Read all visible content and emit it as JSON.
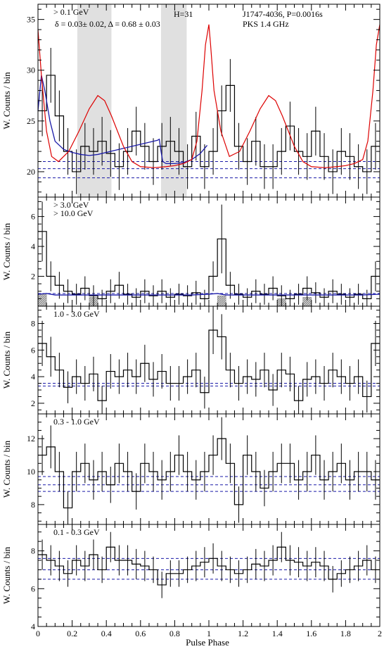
{
  "figure": {
    "xlabel": "Pulse Phase",
    "xlim": [
      0,
      2
    ],
    "x_ticks": [
      "0",
      "0.2",
      "0.4",
      "0.6",
      "0.8",
      "1",
      "1.2",
      "1.4",
      "1.6",
      "1.8",
      "2"
    ],
    "colors": {
      "histogram": "#000000",
      "radio": "#dd0000",
      "fit": "#1a1aa8",
      "background": "#1a1aa8",
      "shading": "#e0e0e0",
      "hatch": "#888888"
    }
  },
  "chart_data": [
    {
      "type": "histogram",
      "panel": "0.1 GeV and above",
      "ylabel": "W. Counts / bin",
      "ylim": [
        17.5,
        36.5
      ],
      "y_ticks": [
        20,
        25,
        30,
        35
      ],
      "labels": {
        "energy": "> 0.1 GeV",
        "htest": "H=31",
        "pulsar": "J1747-4036, P=0.0016s",
        "radio_source": "PKS 1.4 GHz",
        "fit": "δ = 0.03± 0.02, Δ = 0.68 ± 0.03"
      },
      "shaded_ranges": [
        [
          0.23,
          0.43
        ],
        [
          0.72,
          0.87
        ]
      ],
      "bins": 40,
      "values": [
        26.0,
        29.5,
        25.5,
        22.0,
        20.0,
        22.5,
        22.0,
        23.0,
        21.8,
        20.5,
        22.0,
        24.0,
        22.5,
        21.0,
        22.5,
        23.0,
        22.0,
        20.5,
        23.5,
        20.5,
        22.0,
        26.0,
        28.5,
        22.5,
        21.0,
        23.0,
        20.5,
        20.5,
        22.0,
        24.5,
        22.0,
        21.5,
        24.0,
        21.5,
        20.0,
        22.0,
        21.5,
        20.5,
        20.0,
        22.5
      ],
      "errors": [
        2.5,
        2.7,
        2.5,
        2.3,
        2.2,
        2.3,
        2.3,
        2.4,
        2.3,
        2.3,
        2.3,
        2.4,
        2.3,
        2.3,
        2.3,
        2.4,
        2.3,
        2.2,
        2.4,
        2.2,
        2.3,
        2.5,
        2.6,
        2.3,
        2.3,
        2.4,
        2.2,
        2.2,
        2.3,
        2.4,
        2.3,
        2.3,
        2.4,
        2.3,
        2.2,
        2.3,
        2.3,
        2.2,
        2.2,
        2.3
      ],
      "background_lines": [
        21.0,
        20.3,
        19.4
      ],
      "fit_curve": {
        "x": [
          0.0,
          0.02,
          0.04,
          0.07,
          0.1,
          0.15,
          0.2,
          0.25,
          0.3,
          0.35,
          0.4,
          0.45,
          0.5,
          0.55,
          0.6,
          0.65,
          0.7,
          0.71,
          0.72,
          0.73,
          0.75,
          0.8,
          0.85,
          0.9,
          0.95,
          0.99
        ],
        "y": [
          26.0,
          29.5,
          28.0,
          25.0,
          23.0,
          22.2,
          21.9,
          21.7,
          21.6,
          21.7,
          21.9,
          22.1,
          22.3,
          22.5,
          22.7,
          22.9,
          23.1,
          23.2,
          22.0,
          21.0,
          20.8,
          20.8,
          20.9,
          21.2,
          21.8,
          22.6
        ]
      },
      "radio_profile": {
        "x": [
          0.0,
          0.02,
          0.05,
          0.08,
          0.12,
          0.18,
          0.24,
          0.3,
          0.35,
          0.39,
          0.43,
          0.5,
          0.55,
          0.6,
          0.68,
          0.75,
          0.8,
          0.85,
          0.9,
          0.93,
          0.96,
          0.98,
          1.0,
          1.01,
          1.03,
          1.07,
          1.12,
          1.18,
          1.24,
          1.3,
          1.35,
          1.39,
          1.43,
          1.5,
          1.55,
          1.6,
          1.68,
          1.75,
          1.8,
          1.85,
          1.9,
          1.93,
          1.96,
          1.98,
          2.0
        ],
        "y": [
          34.0,
          29.5,
          24.0,
          21.5,
          21.0,
          22.0,
          24.0,
          26.2,
          27.5,
          27.0,
          25.5,
          22.5,
          21.0,
          20.5,
          20.4,
          20.5,
          20.6,
          20.8,
          21.2,
          23.0,
          28.0,
          32.5,
          34.5,
          32.5,
          28.0,
          24.0,
          21.5,
          22.0,
          24.0,
          26.2,
          27.5,
          27.0,
          25.5,
          22.5,
          21.0,
          20.5,
          20.4,
          20.5,
          20.6,
          20.8,
          21.2,
          23.0,
          28.0,
          32.5,
          34.5
        ]
      }
    },
    {
      "type": "histogram",
      "panel": "3.0 GeV and above",
      "ylabel": "W. Counts / bin",
      "ylim": [
        0,
        7.3
      ],
      "y_ticks": [
        2,
        4,
        6
      ],
      "labels": {
        "energy": "> 3.0 GeV",
        "energy_hatched": "> 10.0 GeV"
      },
      "bins": 40,
      "values": [
        5.0,
        2.0,
        1.4,
        1.0,
        0.8,
        1.2,
        0.7,
        0.5,
        1.0,
        1.4,
        0.8,
        0.6,
        1.0,
        0.7,
        1.0,
        0.6,
        0.8,
        0.7,
        0.9,
        0.5,
        2.0,
        4.5,
        1.4,
        0.8,
        0.6,
        1.0,
        0.8,
        1.2,
        0.7,
        0.5,
        0.8,
        1.2,
        0.9,
        0.6,
        1.0,
        0.8,
        0.6,
        0.8,
        0.5,
        2.0
      ],
      "errors": [
        2.0,
        1.0,
        0.9,
        0.8,
        0.7,
        0.8,
        0.7,
        0.6,
        0.8,
        0.9,
        0.7,
        0.6,
        0.8,
        0.7,
        0.8,
        0.6,
        0.7,
        0.7,
        0.8,
        0.6,
        1.0,
        2.3,
        0.9,
        0.7,
        0.6,
        0.8,
        0.7,
        0.8,
        0.7,
        0.6,
        0.7,
        0.8,
        0.7,
        0.6,
        0.8,
        0.7,
        0.6,
        0.7,
        0.6,
        1.0
      ],
      "hatched_values": [
        0.8,
        0,
        0,
        0,
        0,
        0,
        0.6,
        0,
        0,
        0,
        0,
        0,
        0,
        0,
        0,
        0,
        0,
        0,
        0,
        0,
        0,
        0.7,
        0,
        0,
        0,
        0,
        0,
        0,
        0.5,
        0,
        0,
        0.6,
        0,
        0,
        0,
        0,
        0,
        0,
        0,
        0
      ],
      "background_lines": [
        0.85
      ],
      "fit_curve": {
        "x": [
          0.0,
          0.05,
          0.1,
          0.5,
          0.9,
          1.0,
          1.05,
          1.1,
          1.5,
          1.9,
          2.0
        ],
        "y": [
          0.8,
          0.85,
          0.75,
          0.75,
          0.75,
          0.8,
          0.85,
          0.75,
          0.75,
          0.75,
          0.8
        ]
      }
    },
    {
      "type": "histogram",
      "panel": "1.0 - 3.0 GeV",
      "ylabel": "W. Counts / bin",
      "ylim": [
        1.2,
        9.3
      ],
      "y_ticks": [
        2,
        4,
        6,
        8
      ],
      "labels": {
        "energy": "1.0 - 3.0 GeV"
      },
      "bins": 40,
      "values": [
        6.5,
        5.5,
        4.5,
        3.2,
        4.0,
        3.5,
        4.2,
        2.2,
        4.4,
        4.0,
        4.5,
        4.0,
        5.0,
        3.8,
        4.4,
        3.5,
        3.5,
        4.0,
        4.5,
        2.8,
        7.5,
        7.0,
        4.5,
        3.5,
        4.0,
        3.8,
        4.5,
        3.0,
        4.5,
        4.2,
        2.2,
        3.8,
        4.0,
        3.5,
        4.5,
        4.0,
        3.5,
        4.0,
        2.5,
        6.5
      ],
      "errors": [
        1.7,
        1.5,
        1.3,
        1.2,
        1.3,
        1.3,
        1.3,
        1.1,
        1.3,
        1.3,
        1.3,
        1.3,
        1.4,
        1.3,
        1.3,
        1.3,
        1.3,
        1.3,
        1.3,
        1.2,
        1.8,
        1.7,
        1.3,
        1.3,
        1.3,
        1.3,
        1.3,
        1.2,
        1.3,
        1.3,
        1.1,
        1.3,
        1.3,
        1.3,
        1.3,
        1.3,
        1.3,
        1.3,
        1.2,
        1.7
      ],
      "background_lines": [
        3.5,
        3.3
      ]
    },
    {
      "type": "histogram",
      "panel": "0.3 - 1.0 GeV",
      "ylabel": "W. Counts / bin",
      "ylim": [
        6.8,
        13.5
      ],
      "y_ticks": [
        8,
        10,
        12
      ],
      "labels": {
        "energy": "0.3 - 1.0 GeV"
      },
      "bins": 40,
      "values": [
        11.0,
        11.5,
        10.0,
        7.8,
        10.0,
        10.5,
        9.5,
        10.0,
        9.2,
        10.5,
        10.0,
        8.8,
        10.5,
        10.0,
        9.5,
        10.0,
        11.0,
        10.0,
        9.5,
        10.0,
        11.0,
        12.0,
        10.5,
        8.0,
        11.0,
        10.0,
        9.0,
        10.0,
        10.5,
        10.5,
        9.5,
        10.0,
        11.0,
        9.5,
        10.0,
        10.5,
        9.5,
        10.0,
        10.0,
        9.5
      ],
      "errors": [
        1.2,
        1.3,
        1.2,
        1.0,
        1.2,
        1.2,
        1.2,
        1.2,
        1.1,
        1.2,
        1.2,
        1.1,
        1.2,
        1.2,
        1.2,
        1.2,
        1.2,
        1.2,
        1.2,
        1.2,
        1.2,
        1.3,
        1.2,
        1.1,
        1.2,
        1.2,
        1.1,
        1.2,
        1.2,
        1.2,
        1.2,
        1.2,
        1.2,
        1.2,
        1.2,
        1.2,
        1.2,
        1.2,
        1.2,
        1.2
      ],
      "background_lines": [
        9.7,
        9.2,
        8.8
      ]
    },
    {
      "type": "histogram",
      "panel": "0.1 - 0.3 GeV",
      "ylabel": "W. Counts / bin",
      "ylim": [
        4.0,
        9.4
      ],
      "y_ticks": [
        4,
        6,
        8
      ],
      "labels": {
        "energy": "0.1 - 0.3 GeV"
      },
      "bins": 40,
      "values": [
        7.8,
        7.5,
        7.2,
        6.8,
        7.5,
        7.2,
        7.8,
        7.0,
        8.2,
        7.5,
        7.5,
        7.3,
        7.2,
        7.0,
        6.2,
        6.8,
        6.8,
        7.0,
        7.2,
        7.4,
        7.6,
        7.2,
        7.0,
        6.8,
        7.0,
        7.3,
        7.2,
        7.5,
        8.2,
        7.5,
        7.4,
        7.2,
        7.4,
        7.2,
        6.5,
        6.8,
        7.0,
        7.2,
        7.5,
        7.0
      ],
      "errors": [
        0.8,
        0.8,
        0.8,
        0.7,
        0.8,
        0.8,
        0.8,
        0.7,
        0.8,
        0.8,
        0.8,
        0.8,
        0.8,
        0.7,
        0.7,
        0.7,
        0.7,
        0.7,
        0.8,
        0.8,
        0.8,
        0.8,
        0.7,
        0.7,
        0.7,
        0.8,
        0.8,
        0.8,
        0.8,
        0.8,
        0.8,
        0.8,
        0.8,
        0.8,
        0.7,
        0.7,
        0.7,
        0.8,
        0.8,
        0.7
      ],
      "background_lines": [
        7.6,
        7.0,
        6.5
      ]
    }
  ]
}
